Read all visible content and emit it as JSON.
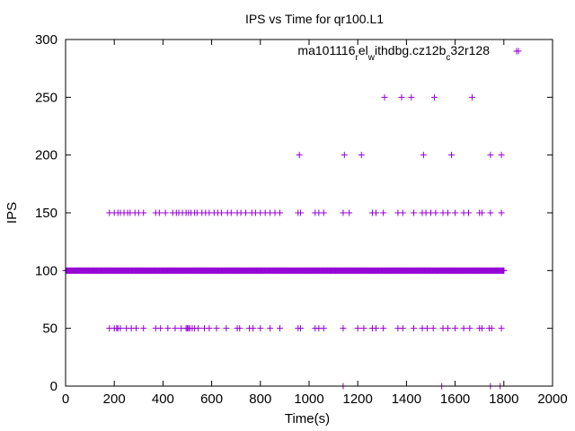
{
  "chart_data": {
    "type": "scatter",
    "title": "IPS vs Time for qr100.L1",
    "xlabel": "Time(s)",
    "ylabel": "IPS",
    "xlim": [
      0,
      2000
    ],
    "ylim": [
      0,
      300
    ],
    "xticks": [
      0,
      200,
      400,
      600,
      800,
      1000,
      1200,
      1400,
      1600,
      1800,
      2000
    ],
    "yticks": [
      0,
      50,
      100,
      150,
      200,
      250,
      300
    ],
    "grid": false,
    "legend_position": "top-right",
    "marker": "plus",
    "colors": {
      "series": "#9400d3"
    },
    "series": [
      {
        "name": "ma101116_rel_withdbg.cz12b_c32r128",
        "legend_parts": [
          {
            "text": "ma101116",
            "sub": false
          },
          {
            "text": "r",
            "sub": true
          },
          {
            "text": "el",
            "sub": false
          },
          {
            "text": "w",
            "sub": true
          },
          {
            "text": "ithdbg.cz12b",
            "sub": false
          },
          {
            "text": "c",
            "sub": true
          },
          {
            "text": "32r128",
            "sub": false
          }
        ],
        "dense_runs": [
          {
            "y": 100,
            "x_start": 0,
            "x_end": 1800,
            "step": 3
          }
        ],
        "groups": [
          {
            "y": 0,
            "x": [
              1140,
              1545,
              1745,
              1785
            ]
          },
          {
            "y": 50,
            "x": [
              180,
              200,
              210,
              215,
              225,
              250,
              270,
              290,
              320,
              370,
              390,
              420,
              450,
              475,
              495,
              500,
              505,
              510,
              520,
              530,
              545,
              570,
              590,
              620,
              660,
              705,
              715,
              755,
              770,
              800,
              840,
              880,
              955,
              965,
              1025,
              1040,
              1060,
              1140,
              1200,
              1225,
              1260,
              1275,
              1305,
              1365,
              1385,
              1430,
              1465,
              1485,
              1510,
              1550,
              1570,
              1600,
              1635,
              1660,
              1700,
              1710,
              1740,
              1750,
              1790
            ]
          },
          {
            "y": 100,
            "x": [
              1800
            ]
          },
          {
            "y": 150,
            "x": [
              180,
              200,
              215,
              225,
              240,
              255,
              265,
              285,
              300,
              320,
              370,
              385,
              410,
              440,
              455,
              465,
              480,
              495,
              505,
              515,
              530,
              540,
              560,
              575,
              590,
              610,
              625,
              640,
              665,
              680,
              705,
              720,
              740,
              765,
              780,
              800,
              820,
              840,
              860,
              880,
              955,
              965,
              1025,
              1040,
              1060,
              1140,
              1165,
              1260,
              1275,
              1305,
              1365,
              1385,
              1430,
              1465,
              1480,
              1500,
              1520,
              1550,
              1570,
              1600,
              1635,
              1655,
              1700,
              1710,
              1745,
              1790
            ]
          },
          {
            "y": 200,
            "x": [
              960,
              1145,
              1215,
              1470,
              1585,
              1745,
              1790
            ]
          },
          {
            "y": 250,
            "x": [
              1310,
              1380,
              1420,
              1515,
              1670
            ]
          },
          {
            "y": 290,
            "x": [
              1860
            ]
          }
        ]
      }
    ]
  }
}
